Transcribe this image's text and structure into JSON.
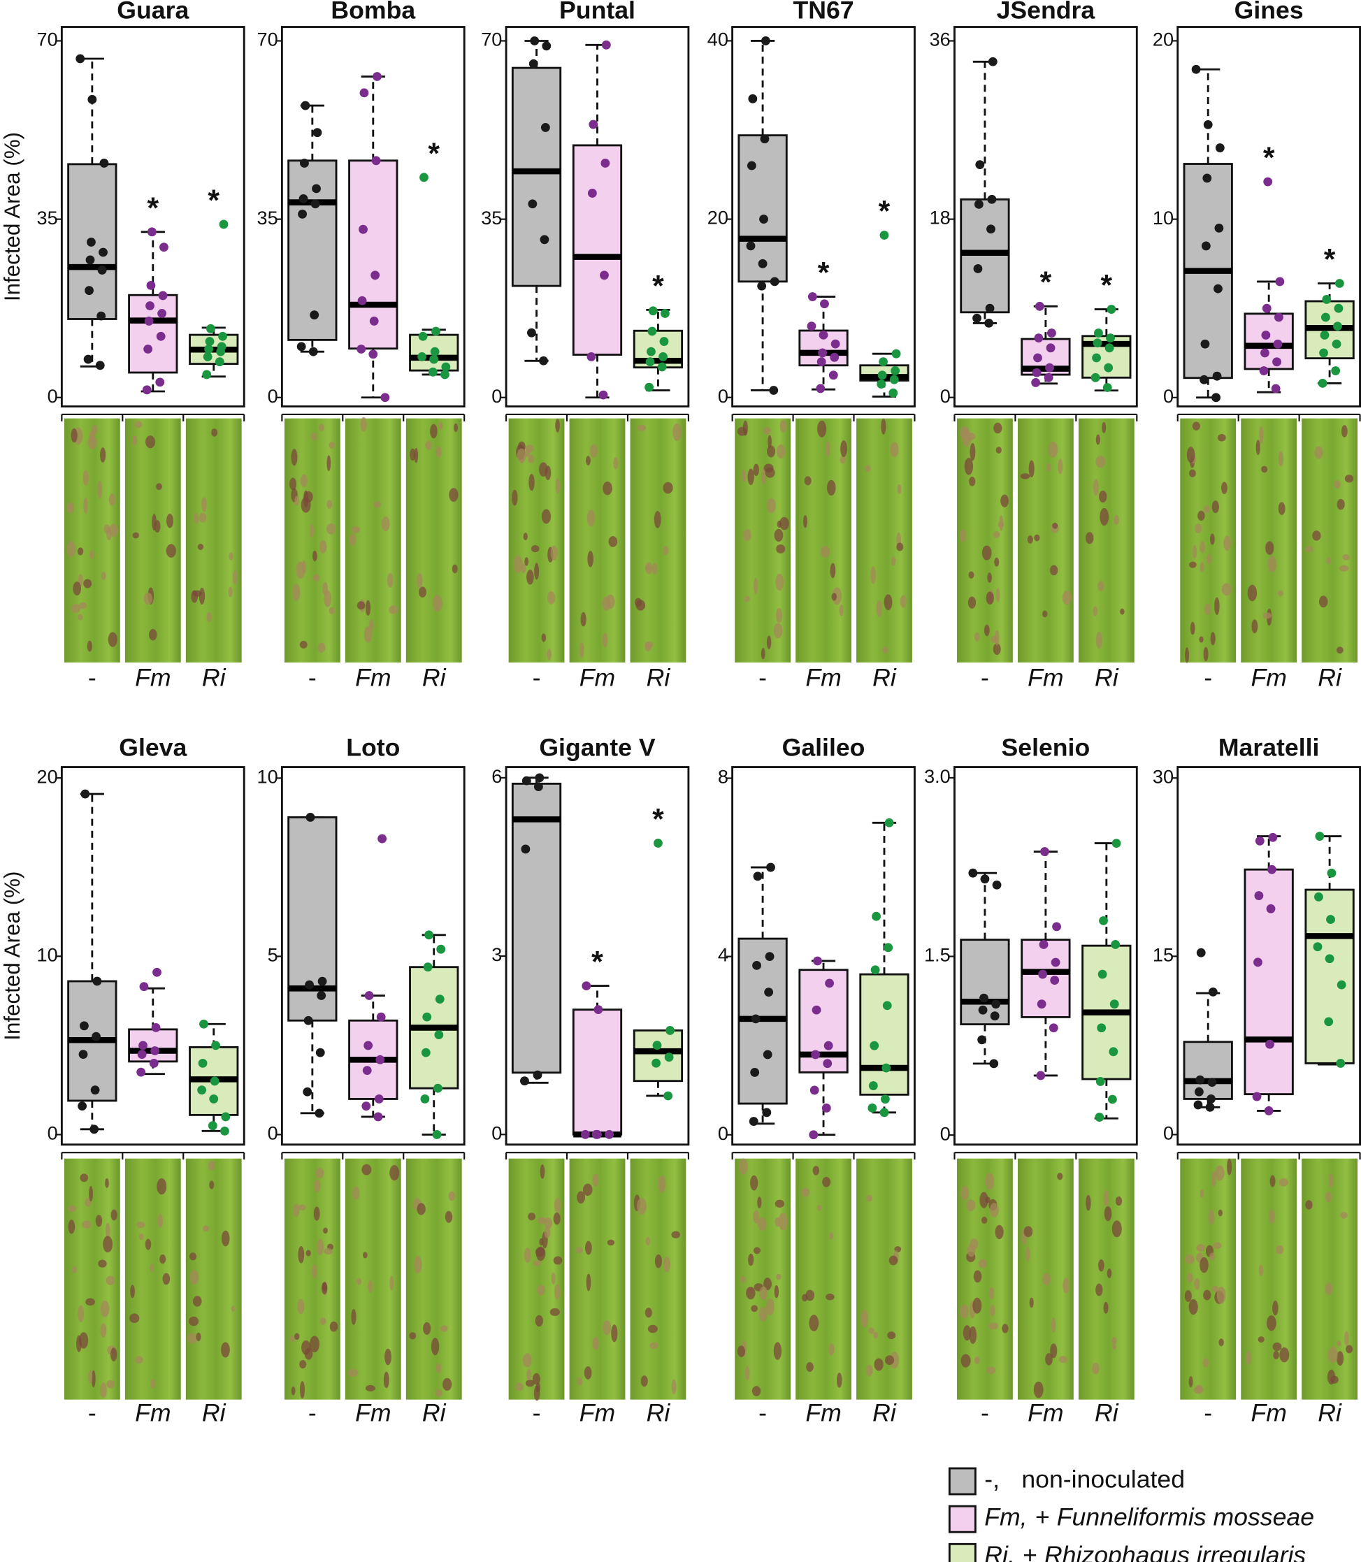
{
  "style": {
    "box_colors": [
      "#bdbdbd",
      "#f3d0ee",
      "#d9ebba"
    ],
    "point_colors": [
      "#1a1a1a",
      "#7b2d8e",
      "#1a9641"
    ]
  },
  "legend": [
    {
      "key": "-,",
      "desc": "non-inoculated"
    },
    {
      "key": "Fm,",
      "sign": "+",
      "species": "Funneliformis mosseae",
      "italic": true
    },
    {
      "key": "Ri,",
      "sign": "+",
      "species": "Rhizophagus irregularis",
      "italic": true
    }
  ],
  "chart_data": [
    {
      "type": "box",
      "title": "Guara",
      "ylabel": "Infected Area (%)",
      "categories": [
        "-",
        "Fm",
        "Ri"
      ],
      "ylim": [
        -1.76,
        72.74
      ],
      "yticks": [
        0,
        35,
        70
      ],
      "groups": [
        {
          "stats": [
            6.1,
            15.4,
            25.6,
            45.8,
            66.5
          ],
          "points": [
            66.5,
            58.5,
            46,
            30.5,
            28.5,
            27,
            25,
            21,
            16,
            7.5,
            6.3
          ]
        },
        {
          "stats": [
            1.2,
            4.9,
            15.1,
            20.1,
            32.5
          ],
          "points": [
            32.5,
            29.5,
            22,
            20,
            18,
            16.5,
            15,
            12,
            9.5,
            3,
            1.5
          ]
        },
        {
          "stats": [
            4.1,
            6.6,
            9.4,
            12.3,
            13.7
          ],
          "points": [
            34,
            13.5,
            12,
            11,
            10,
            9.5,
            9,
            8,
            7,
            4.5
          ]
        }
      ],
      "annotations": [
        {
          "category": "Fm",
          "text": "*"
        },
        {
          "category": "Ri",
          "text": "*"
        }
      ]
    },
    {
      "type": "box",
      "title": "Bomba",
      "categories": [
        "-",
        "Fm",
        "Ri"
      ],
      "ylim": [
        -1.76,
        72.74
      ],
      "yticks": [
        0,
        35,
        70
      ],
      "groups": [
        {
          "stats": [
            9,
            11.3,
            38.3,
            46.5,
            57.3
          ],
          "points": [
            57.3,
            52,
            46,
            41,
            39,
            38,
            36,
            16.2,
            10,
            9
          ]
        },
        {
          "stats": [
            0,
            9.6,
            18.2,
            46.5,
            63
          ],
          "points": [
            63,
            59.8,
            46.5,
            33,
            24,
            19,
            15,
            9.5,
            8.5,
            0
          ]
        },
        {
          "stats": [
            4.5,
            5.3,
            7.8,
            12.3,
            13.3
          ],
          "points": [
            43.2,
            13,
            12,
            9,
            8,
            7.5,
            6,
            5,
            4.5
          ]
        }
      ],
      "annotations": [
        {
          "category": "Ri",
          "text": "*"
        }
      ]
    },
    {
      "type": "box",
      "title": "Puntal",
      "categories": [
        "-",
        "Fm",
        "Ri"
      ],
      "ylim": [
        -1.76,
        72.74
      ],
      "yticks": [
        0,
        35,
        70
      ],
      "groups": [
        {
          "stats": [
            7.2,
            21.9,
            44.4,
            64.7,
            70
          ],
          "points": [
            70,
            69,
            65.5,
            53,
            38,
            31,
            12.7,
            7.2
          ]
        },
        {
          "stats": [
            0,
            8.4,
            27.6,
            49.5,
            69.2
          ],
          "points": [
            69.2,
            53.6,
            46,
            40.1,
            24,
            8,
            0.5
          ]
        },
        {
          "stats": [
            1.4,
            5.9,
            7.2,
            13.1,
            17.2
          ],
          "points": [
            17,
            16.5,
            13,
            11,
            9,
            8,
            7,
            6,
            2
          ]
        }
      ],
      "annotations": [
        {
          "category": "Ri",
          "text": "*"
        }
      ]
    },
    {
      "type": "box",
      "title": "TN67",
      "categories": [
        "-",
        "Fm",
        "Ri"
      ],
      "ylim": [
        -1.01,
        41.56
      ],
      "yticks": [
        0,
        20,
        40
      ],
      "groups": [
        {
          "stats": [
            0.8,
            13,
            17.8,
            29.4,
            40
          ],
          "points": [
            40,
            33.5,
            29,
            26,
            20,
            17,
            15,
            13,
            12.5,
            0.8
          ]
        },
        {
          "stats": [
            0.9,
            3.6,
            5,
            7.5,
            11.3
          ],
          "points": [
            11.3,
            10.5,
            8,
            7,
            6,
            5,
            4.5,
            4,
            2.5,
            1
          ]
        },
        {
          "stats": [
            0.1,
            1.9,
            2.3,
            3.6,
            4.9
          ],
          "points": [
            18.2,
            4.9,
            4,
            3,
            2.5,
            2,
            1.5,
            0.5
          ]
        }
      ],
      "annotations": [
        {
          "category": "Fm",
          "text": "*"
        },
        {
          "category": "Ri",
          "text": "*"
        }
      ]
    },
    {
      "type": "box",
      "title": "JSendra",
      "categories": [
        "-",
        "Fm",
        "Ri"
      ],
      "ylim": [
        -0.91,
        37.41
      ],
      "yticks": [
        0,
        18,
        36
      ],
      "groups": [
        {
          "stats": [
            7.5,
            8.6,
            14.6,
            20,
            33.9
          ],
          "points": [
            33.9,
            23.5,
            20,
            19.5,
            17,
            13,
            9,
            8,
            7.5
          ]
        },
        {
          "stats": [
            1.4,
            2.3,
            2.9,
            5.9,
            9.2
          ],
          "points": [
            9.2,
            6.5,
            6,
            5,
            4,
            3,
            2.5,
            2,
            1.5
          ]
        },
        {
          "stats": [
            0.7,
            2,
            5.4,
            6.2,
            8.9
          ],
          "points": [
            8.9,
            6.5,
            6,
            5.5,
            5,
            4,
            3,
            2,
            1
          ]
        }
      ],
      "annotations": [
        {
          "category": "Fm",
          "text": "*"
        },
        {
          "category": "Ri",
          "text": "*"
        }
      ]
    },
    {
      "type": "box",
      "title": "Gines",
      "categories": [
        "-",
        "Fm",
        "Ri"
      ],
      "ylim": [
        -0.5,
        20.78
      ],
      "yticks": [
        0,
        10,
        20
      ],
      "groups": [
        {
          "stats": [
            0,
            1.1,
            7.1,
            13.1,
            18.4
          ],
          "points": [
            18.4,
            15.3,
            14,
            12.3,
            9.5,
            8.5,
            6.1,
            3,
            1.2,
            1,
            0
          ]
        },
        {
          "stats": [
            0.3,
            1.6,
            2.9,
            4.7,
            6.5
          ],
          "points": [
            12.1,
            6.5,
            5,
            4.5,
            3.5,
            3,
            2.5,
            2,
            1.5,
            0.5
          ]
        },
        {
          "stats": [
            0.8,
            2.2,
            3.9,
            5.4,
            6.4
          ],
          "points": [
            6.4,
            5.5,
            5,
            4.5,
            4,
            3.5,
            3,
            2.5,
            1.5,
            0.8
          ]
        }
      ],
      "annotations": [
        {
          "category": "Fm",
          "text": "*"
        },
        {
          "category": "Ri",
          "text": "*"
        }
      ]
    },
    {
      "type": "box",
      "title": "Gleva",
      "ylabel": "Infected Area (%)",
      "categories": [
        "-",
        "Fm",
        "Ri"
      ],
      "ylim": [
        -0.56,
        20.61
      ],
      "yticks": [
        0,
        10,
        20
      ],
      "groups": [
        {
          "stats": [
            0.3,
            1.9,
            5.3,
            8.6,
            19.1
          ],
          "points": [
            19.1,
            8.6,
            6.1,
            5.5,
            4.5,
            2.5,
            1.6,
            0.3
          ]
        },
        {
          "stats": [
            3.4,
            4.1,
            4.7,
            5.9,
            8.2
          ],
          "points": [
            9.1,
            8.3,
            6,
            5,
            4.7,
            4.5,
            4,
            3.5
          ]
        },
        {
          "stats": [
            0.2,
            1.1,
            3.1,
            4.9,
            6.2
          ],
          "points": [
            6.2,
            5,
            4,
            3,
            2.5,
            2,
            1,
            0.5,
            0.2
          ]
        }
      ]
    },
    {
      "type": "box",
      "title": "Loto",
      "categories": [
        "-",
        "Fm",
        "Ri"
      ],
      "ylim": [
        -0.28,
        10.31
      ],
      "yticks": [
        0,
        5,
        10
      ],
      "groups": [
        {
          "stats": [
            0.6,
            3.2,
            4.1,
            8.9,
            8.9
          ],
          "points": [
            8.9,
            4.3,
            4.2,
            3.9,
            3.2,
            2.3,
            1.2,
            0.6
          ]
        },
        {
          "stats": [
            0.5,
            1,
            2.1,
            3.2,
            3.9
          ],
          "points": [
            8.3,
            3.9,
            3.3,
            2.5,
            2.1,
            1.8,
            1,
            0.8,
            0.5
          ]
        },
        {
          "stats": [
            0,
            1.3,
            3,
            4.7,
            5.6
          ],
          "points": [
            5.6,
            5.2,
            4.7,
            3.8,
            3.3,
            2.8,
            2.3,
            1.3,
            1,
            0
          ]
        }
      ]
    },
    {
      "type": "box",
      "title": "Gigante V",
      "categories": [
        "-",
        "Fm",
        "Ri"
      ],
      "ylim": [
        -0.17,
        6.18
      ],
      "yticks": [
        0,
        3,
        6
      ],
      "groups": [
        {
          "stats": [
            0.87,
            1.04,
            5.3,
            5.9,
            6
          ],
          "points": [
            6,
            5.95,
            5.85,
            4.8,
            1,
            0.9
          ]
        },
        {
          "stats": [
            0,
            0,
            0,
            2.1,
            2.5
          ],
          "points": [
            2.5,
            2.1,
            0,
            0,
            0,
            0
          ]
        },
        {
          "stats": [
            0.65,
            0.9,
            1.4,
            1.75,
            1.75
          ],
          "points": [
            4.9,
            1.75,
            1.5,
            1.3,
            1.2,
            0.65
          ]
        }
      ],
      "annotations": [
        {
          "category": "Fm",
          "text": "*"
        },
        {
          "category": "Ri",
          "text": "*"
        }
      ]
    },
    {
      "type": "box",
      "title": "Galileo",
      "categories": [
        "-",
        "Fm",
        "Ri"
      ],
      "ylim": [
        -0.22,
        8.25
      ],
      "yticks": [
        0,
        4,
        8
      ],
      "groups": [
        {
          "stats": [
            0.25,
            0.7,
            2.6,
            4.4,
            6
          ],
          "points": [
            6,
            5.8,
            4,
            3.8,
            3.2,
            2.6,
            1.8,
            1.4,
            0.5,
            0.3
          ]
        },
        {
          "stats": [
            0,
            1.4,
            1.8,
            3.7,
            3.9
          ],
          "points": [
            3.9,
            3.4,
            2.8,
            2,
            1.8,
            1.6,
            1,
            0.6,
            0
          ]
        },
        {
          "stats": [
            0.5,
            0.9,
            1.5,
            3.6,
            7
          ],
          "points": [
            7,
            4.9,
            4.2,
            3.7,
            2.9,
            2,
            1.5,
            1.1,
            0.8,
            0.6,
            0.5
          ]
        }
      ]
    },
    {
      "type": "box",
      "title": "Selenio",
      "categories": [
        "-",
        "Fm",
        "Ri"
      ],
      "ylim": [
        -0.08,
        3.09
      ],
      "yticks": [
        0,
        1.5,
        {
          "value": 3,
          "label": "3.0"
        }
      ],
      "groups": [
        {
          "stats": [
            0.6,
            0.93,
            1.12,
            1.64,
            2.2
          ],
          "points": [
            2.2,
            2.15,
            2.1,
            1.15,
            1.1,
            1.05,
            1,
            0.8,
            0.6
          ]
        },
        {
          "stats": [
            0.5,
            0.99,
            1.37,
            1.64,
            2.38
          ],
          "points": [
            2.38,
            1.75,
            1.6,
            1.45,
            1.35,
            1.3,
            1.1,
            0.9,
            0.5
          ]
        },
        {
          "stats": [
            0.14,
            0.47,
            1.03,
            1.59,
            2.45
          ],
          "points": [
            2.45,
            1.8,
            1.6,
            1.35,
            1.1,
            0.9,
            0.7,
            0.45,
            0.3,
            0.15
          ]
        }
      ]
    },
    {
      "type": "box",
      "title": "Maratelli",
      "categories": [
        "-",
        "Fm",
        "Ri"
      ],
      "ylim": [
        -0.84,
        30.92
      ],
      "yticks": [
        0,
        15,
        30
      ],
      "groups": [
        {
          "stats": [
            2.3,
            3,
            4.5,
            7.8,
            11.9
          ],
          "points": [
            15.3,
            12,
            4.6,
            4.4,
            3.6,
            3,
            2.5,
            2.3
          ]
        },
        {
          "stats": [
            2,
            3.4,
            8,
            22.3,
            25.1
          ],
          "points": [
            25,
            24.7,
            22.3,
            20.1,
            19,
            14.5,
            7.6,
            3.2,
            2
          ]
        },
        {
          "stats": [
            5.9,
            6,
            16.7,
            20.6,
            25.1
          ],
          "points": [
            25.1,
            22,
            20,
            18.1,
            15.8,
            14.8,
            12.6,
            9.5,
            6
          ]
        }
      ]
    }
  ]
}
